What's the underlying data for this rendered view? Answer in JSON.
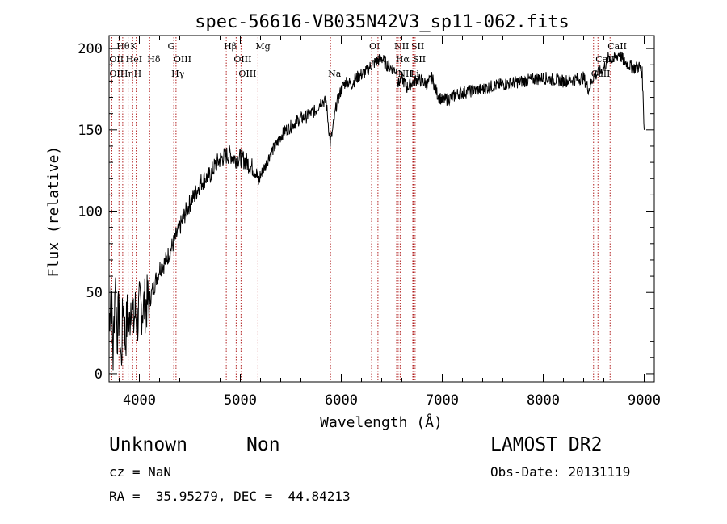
{
  "chart_data": {
    "type": "line",
    "title": "spec-56616-VB035N42V3_sp11-062.fits",
    "xlabel": "Wavelength (Å)",
    "ylabel": "Flux (relative)",
    "xlim": [
      3700,
      9100
    ],
    "ylim": [
      -5,
      208
    ],
    "x_ticks": [
      4000,
      5000,
      6000,
      7000,
      8000,
      9000
    ],
    "y_ticks": [
      0,
      50,
      100,
      150,
      200
    ],
    "grid": false,
    "line_color": "#000000",
    "marker_color": "#b22222",
    "series": [
      {
        "values_note": "",
        "x": [
          3700,
          3720,
          3740,
          3760,
          3780,
          3800,
          3820,
          3840,
          3860,
          3880,
          3900,
          3920,
          3940,
          3960,
          3980,
          4000,
          4050,
          4100,
          4150,
          4200,
          4250,
          4300,
          4350,
          4400,
          4450,
          4500,
          4550,
          4600,
          4650,
          4700,
          4750,
          4800,
          4850,
          4900,
          4950,
          5000,
          5050,
          5100,
          5150,
          5180,
          5200,
          5250,
          5300,
          5350,
          5400,
          5450,
          5500,
          5550,
          5600,
          5650,
          5700,
          5750,
          5800,
          5850,
          5890,
          5910,
          5950,
          6000,
          6050,
          6100,
          6150,
          6200,
          6250,
          6300,
          6350,
          6400,
          6450,
          6500,
          6550,
          6563,
          6600,
          6650,
          6700,
          6750,
          6800,
          6850,
          6900,
          6950,
          7000,
          7050,
          7100,
          7150,
          7200,
          7300,
          7400,
          7500,
          7600,
          7700,
          7800,
          7900,
          8000,
          8100,
          8200,
          8300,
          8400,
          8450,
          8500,
          8550,
          8600,
          8650,
          8700,
          8750,
          8800,
          8850,
          8900,
          8950,
          8980,
          9000
        ],
        "y": [
          30,
          55,
          10,
          60,
          25,
          40,
          5,
          45,
          20,
          35,
          28,
          50,
          30,
          38,
          32,
          40,
          42,
          45,
          55,
          65,
          68,
          75,
          82,
          90,
          98,
          105,
          110,
          117,
          120,
          122,
          128,
          132,
          134,
          135,
          132,
          133,
          131,
          128,
          125,
          118,
          122,
          128,
          136,
          140,
          146,
          150,
          152,
          155,
          157,
          158,
          160,
          162,
          168,
          167,
          142,
          148,
          165,
          175,
          180,
          178,
          182,
          184,
          186,
          190,
          192,
          194,
          190,
          188,
          186,
          178,
          182,
          176,
          179,
          181,
          180,
          178,
          182,
          172,
          168,
          169,
          170,
          172,
          173,
          174,
          175,
          177,
          178,
          179,
          180,
          181,
          182,
          181,
          180,
          181,
          182,
          175,
          183,
          185,
          188,
          195,
          193,
          197,
          192,
          190,
          188,
          189,
          185,
          150
        ]
      }
    ],
    "line_markers": [
      {
        "label": "Hθ",
        "x": 3798,
        "row": 1
      },
      {
        "label": "OII",
        "x": 3727,
        "row": 2
      },
      {
        "label": "OII",
        "x": 3727,
        "row": 3
      },
      {
        "label": "Hη",
        "x": 3835,
        "row": 3
      },
      {
        "label": "K",
        "x": 3934,
        "row": 1
      },
      {
        "label": "HeI",
        "x": 3889,
        "row": 2
      },
      {
        "label": "H",
        "x": 3969,
        "row": 3
      },
      {
        "label": "Hδ",
        "x": 4102,
        "row": 2
      },
      {
        "label": "G",
        "x": 4304,
        "row": 1
      },
      {
        "label": "OIII",
        "x": 4363,
        "row": 2
      },
      {
        "label": "Hγ",
        "x": 4341,
        "row": 3
      },
      {
        "label": "Hβ",
        "x": 4861,
        "row": 1
      },
      {
        "label": "OIII",
        "x": 4959,
        "row": 2
      },
      {
        "label": "OIII",
        "x": 5007,
        "row": 3
      },
      {
        "label": "Mg",
        "x": 5175,
        "row": 1
      },
      {
        "label": "Na",
        "x": 5893,
        "row": 3
      },
      {
        "label": "OI",
        "x": 6300,
        "row": 1
      },
      {
        "label": "OI",
        "x": 6363,
        "row": 2
      },
      {
        "label": "NII",
        "x": 6548,
        "row": 1
      },
      {
        "label": "Hα",
        "x": 6563,
        "row": 2
      },
      {
        "label": "NII",
        "x": 6583,
        "row": 3
      },
      {
        "label": "SII",
        "x": 6716,
        "row": 1
      },
      {
        "label": "SII",
        "x": 6731,
        "row": 2
      },
      {
        "label": "Li",
        "x": 6708,
        "row": 3
      },
      {
        "label": "CaII",
        "x": 8662,
        "row": 1
      },
      {
        "label": "CaII",
        "x": 8542,
        "row": 2
      },
      {
        "label": "CaII",
        "x": 8498,
        "row": 3
      }
    ]
  },
  "info": {
    "object_class": "Unknown",
    "subclass": "Non",
    "survey": "LAMOST DR2",
    "redshift": "cz = NaN",
    "obs_date": "Obs-Date: 20131119",
    "coords": "RA =  35.95279, DEC =  44.84213"
  }
}
